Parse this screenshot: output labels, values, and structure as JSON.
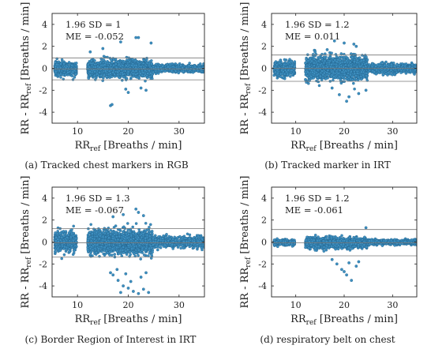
{
  "figure": {
    "panels": [
      {
        "caption": "(a) Tracked chest markers in RGB"
      },
      {
        "caption": "(b) Tracked marker in IRT"
      },
      {
        "caption": "(c) Border Region of Interest in IRT"
      },
      {
        "caption": "(d) respiratory belt on chest"
      }
    ]
  },
  "chart_data": [
    {
      "type": "scatter",
      "title": "",
      "xlabel_main": "RR",
      "xlabel_sub": "ref",
      "xlabel_rest": " [Breaths / min]",
      "ylabel_main": "RR - RR",
      "ylabel_sub": "ref",
      "ylabel_rest": " [Breaths / min]",
      "xlim": [
        5,
        35
      ],
      "ylim": [
        -5,
        5
      ],
      "x_ticks": [
        10,
        20,
        30
      ],
      "y_ticks": [
        -4,
        -2,
        0,
        2,
        4
      ],
      "annotations": [
        "1.96 SD = 1",
        "ME = -0.052"
      ],
      "reference_lines_y": [
        -1.052,
        -0.052,
        0.948
      ],
      "point_color": "#3d8fc0",
      "clusters": [
        {
          "x": [
            5.5,
            9.8
          ],
          "n": 420,
          "sd": 0.28,
          "mean": -0.05
        },
        {
          "x": [
            12.0,
            24.8
          ],
          "n": 1700,
          "sd": 0.36,
          "mean": -0.05
        },
        {
          "x": [
            24.9,
            35
          ],
          "n": 650,
          "sd": 0.16,
          "mean": 0.0
        }
      ],
      "outliers": [
        {
          "x": 16.5,
          "y": -3.4
        },
        {
          "x": 16.8,
          "y": -3.3
        },
        {
          "x": 21.5,
          "y": 2.8
        },
        {
          "x": 22.0,
          "y": 2.8
        },
        {
          "x": 18.5,
          "y": 2.4
        },
        {
          "x": 24.5,
          "y": 2.3
        },
        {
          "x": 20.0,
          "y": -2.2
        },
        {
          "x": 23.5,
          "y": -2.0
        },
        {
          "x": 15.0,
          "y": 1.8
        },
        {
          "x": 19.5,
          "y": -1.9
        },
        {
          "x": 12.5,
          "y": 1.5
        },
        {
          "x": 22.5,
          "y": -1.8
        }
      ]
    },
    {
      "type": "scatter",
      "title": "",
      "xlabel_main": "RR",
      "xlabel_sub": "ref",
      "xlabel_rest": " [Breaths / min]",
      "ylabel_main": "RR - RR",
      "ylabel_sub": "ref",
      "ylabel_rest": " [Breaths / min]",
      "xlim": [
        5,
        35
      ],
      "ylim": [
        -5,
        5
      ],
      "x_ticks": [
        10,
        20,
        30
      ],
      "y_ticks": [
        -4,
        -2,
        0,
        2,
        4
      ],
      "annotations": [
        "1.96 SD = 1.2",
        "ME = 0.011"
      ],
      "reference_lines_y": [
        -1.189,
        0.011,
        1.211
      ],
      "point_color": "#3d8fc0",
      "clusters": [
        {
          "x": [
            5.5,
            9.8
          ],
          "n": 420,
          "sd": 0.33,
          "mean": 0.0
        },
        {
          "x": [
            12.0,
            24.8
          ],
          "n": 1700,
          "sd": 0.48,
          "mean": 0.02
        },
        {
          "x": [
            24.9,
            35
          ],
          "n": 650,
          "sd": 0.2,
          "mean": 0.0
        }
      ],
      "outliers": [
        {
          "x": 18.0,
          "y": 2.5
        },
        {
          "x": 20.0,
          "y": 2.3
        },
        {
          "x": 22.0,
          "y": 2.2
        },
        {
          "x": 19.0,
          "y": -2.4
        },
        {
          "x": 21.0,
          "y": -2.6
        },
        {
          "x": 17.5,
          "y": -1.8
        },
        {
          "x": 23.0,
          "y": -2.3
        },
        {
          "x": 16.5,
          "y": 1.7
        },
        {
          "x": 24.5,
          "y": -2.0
        },
        {
          "x": 14.0,
          "y": 1.5
        },
        {
          "x": 22.5,
          "y": 2.0
        },
        {
          "x": 20.5,
          "y": -3.0
        }
      ]
    },
    {
      "type": "scatter",
      "title": "",
      "xlabel_main": "RR",
      "xlabel_sub": "ref",
      "xlabel_rest": " [Breaths / min]",
      "ylabel_main": "RR - RR",
      "ylabel_sub": "ref",
      "ylabel_rest": " [Breaths / min]",
      "xlim": [
        5,
        35
      ],
      "ylim": [
        -5,
        5
      ],
      "x_ticks": [
        10,
        20,
        30
      ],
      "y_ticks": [
        -4,
        -2,
        0,
        2,
        4
      ],
      "annotations": [
        "1.96 SD = 1.3",
        "ME = -0.067"
      ],
      "reference_lines_y": [
        -1.367,
        -0.067,
        1.233
      ],
      "point_color": "#3d8fc0",
      "clusters": [
        {
          "x": [
            5.5,
            9.8
          ],
          "n": 480,
          "sd": 0.42,
          "mean": 0.0
        },
        {
          "x": [
            12.0,
            24.8
          ],
          "n": 1800,
          "sd": 0.5,
          "mean": 0.0
        },
        {
          "x": [
            24.9,
            35
          ],
          "n": 700,
          "sd": 0.24,
          "mean": 0.0
        }
      ],
      "outliers": [
        {
          "x": 17.0,
          "y": -3.0
        },
        {
          "x": 18.0,
          "y": -3.5
        },
        {
          "x": 19.0,
          "y": -4.0
        },
        {
          "x": 20.0,
          "y": -4.2
        },
        {
          "x": 21.0,
          "y": -4.5
        },
        {
          "x": 22.0,
          "y": -4.7
        },
        {
          "x": 23.0,
          "y": -4.3
        },
        {
          "x": 16.5,
          "y": -2.8
        },
        {
          "x": 18.5,
          "y": -4.6
        },
        {
          "x": 20.5,
          "y": -3.6
        },
        {
          "x": 22.5,
          "y": -3.2
        },
        {
          "x": 21.5,
          "y": 3.0
        },
        {
          "x": 22.0,
          "y": 2.7
        },
        {
          "x": 19.0,
          "y": 2.5
        },
        {
          "x": 17.0,
          "y": 2.3
        },
        {
          "x": 23.5,
          "y": -2.8
        },
        {
          "x": 24.0,
          "y": -4.6
        },
        {
          "x": 17.8,
          "y": -2.5
        },
        {
          "x": 19.5,
          "y": -2.9
        },
        {
          "x": 23.0,
          "y": 2.4
        }
      ]
    },
    {
      "type": "scatter",
      "title": "",
      "xlabel_main": "RR",
      "xlabel_sub": "ref",
      "xlabel_rest": " [Breaths / min]",
      "ylabel_main": "RR - RR",
      "ylabel_sub": "ref",
      "ylabel_rest": " [Breaths / min]",
      "xlim": [
        5,
        35
      ],
      "ylim": [
        -5,
        5
      ],
      "x_ticks": [
        10,
        20,
        30
      ],
      "y_ticks": [
        -4,
        -2,
        0,
        2,
        4
      ],
      "annotations": [
        "1.96 SD = 1.2",
        "ME = -0.061"
      ],
      "reference_lines_y": [
        -1.261,
        -0.061,
        1.139
      ],
      "point_color": "#3d8fc0",
      "clusters": [
        {
          "x": [
            5.5,
            9.8
          ],
          "n": 380,
          "sd": 0.12,
          "mean": -0.05
        },
        {
          "x": [
            12.0,
            24.8
          ],
          "n": 1500,
          "sd": 0.22,
          "mean": -0.08
        },
        {
          "x": [
            24.9,
            35
          ],
          "n": 650,
          "sd": 0.1,
          "mean": 0.0
        }
      ],
      "outliers": [
        {
          "x": 19.5,
          "y": -2.5
        },
        {
          "x": 20.5,
          "y": -3.0
        },
        {
          "x": 21.5,
          "y": -3.5
        },
        {
          "x": 18.5,
          "y": -2.0
        },
        {
          "x": 20.0,
          "y": -2.7
        },
        {
          "x": 22.5,
          "y": -2.2
        },
        {
          "x": 23.0,
          "y": -1.8
        },
        {
          "x": 24.5,
          "y": 1.3
        },
        {
          "x": 21.0,
          "y": -1.9
        },
        {
          "x": 17.5,
          "y": -1.6
        }
      ]
    }
  ]
}
